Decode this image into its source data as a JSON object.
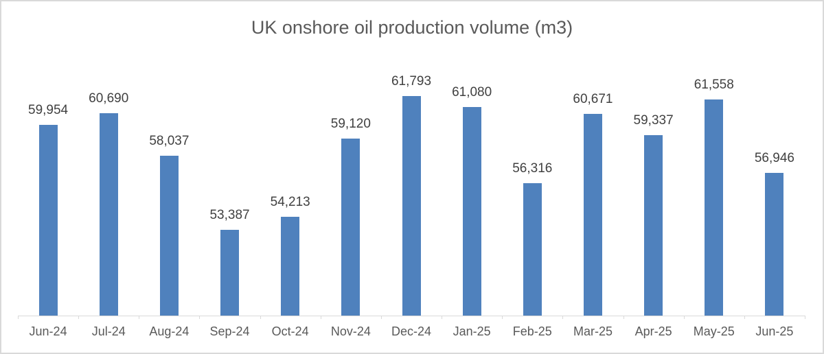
{
  "chart_data": {
    "type": "bar",
    "title": "UK onshore oil production volume (m3)",
    "xlabel": "",
    "ylabel": "",
    "categories": [
      "Jun-24",
      "Jul-24",
      "Aug-24",
      "Sep-24",
      "Oct-24",
      "Nov-24",
      "Dec-24",
      "Jan-25",
      "Feb-25",
      "Mar-25",
      "Apr-25",
      "May-25",
      "Jun-25"
    ],
    "values": [
      59954,
      60690,
      58037,
      53387,
      54213,
      59120,
      61793,
      61080,
      56316,
      60671,
      59337,
      61558,
      56946
    ],
    "data_labels": [
      "59,954",
      "60,690",
      "58,037",
      "53,387",
      "54,213",
      "59,120",
      "61,793",
      "61,080",
      "56,316",
      "60,671",
      "59,337",
      "61,558",
      "56,946"
    ],
    "ylim": [
      48000,
      62000
    ],
    "grid": false,
    "legend": false,
    "colors": {
      "bar": "#4F81BD",
      "title": "#595959",
      "data_label": "#404040",
      "axis_label": "#595959",
      "axis_line": "#d9d9d9",
      "frame_border": "#d9d9d9"
    }
  }
}
